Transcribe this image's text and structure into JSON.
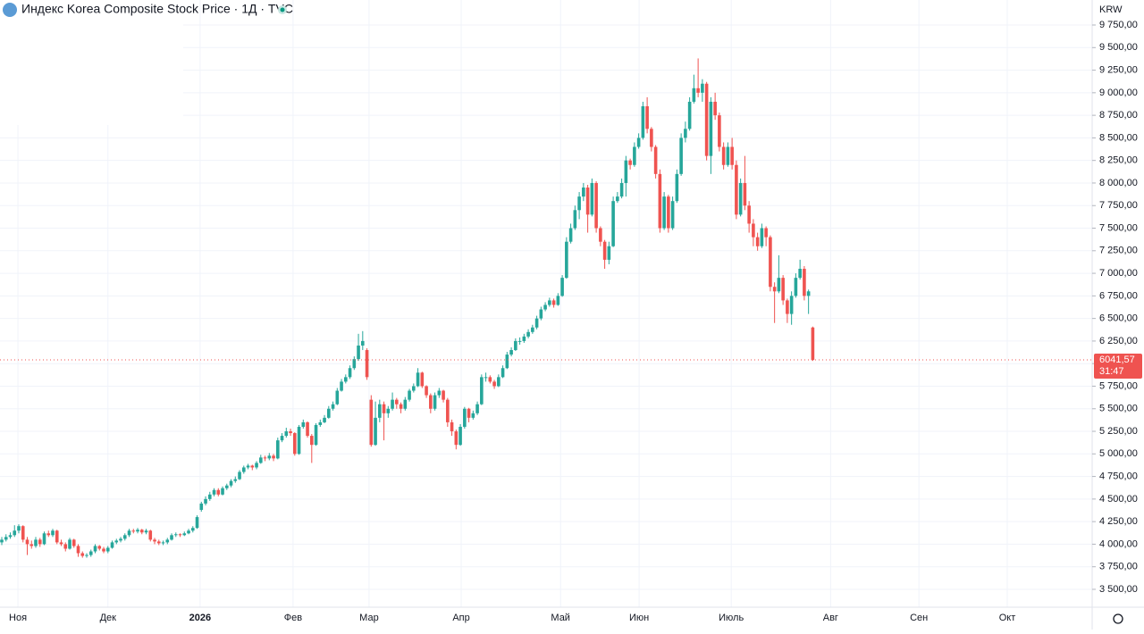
{
  "chart_data": {
    "type": "candlestick",
    "title": "Индекс Korea Composite Stock Price · 1Д · TVC",
    "currency": "KRW",
    "up_color": "#26a69a",
    "down_color": "#ef5350",
    "grid": true,
    "last_price": 6041.57,
    "last_price_label": "6041,57",
    "countdown": "31:47",
    "ylim": [
      3302,
      10027
    ],
    "yticks": [
      {
        "value": 3500,
        "label": "3 500,00"
      },
      {
        "value": 3750,
        "label": "3 750,00"
      },
      {
        "value": 4000,
        "label": "4 000,00"
      },
      {
        "value": 4250,
        "label": "4 250,00"
      },
      {
        "value": 4500,
        "label": "4 500,00"
      },
      {
        "value": 4750,
        "label": "4 750,00"
      },
      {
        "value": 5000,
        "label": "5 000,00"
      },
      {
        "value": 5250,
        "label": "5 250,00"
      },
      {
        "value": 5500,
        "label": "5 500,00"
      },
      {
        "value": 5750,
        "label": "5 750,00"
      },
      {
        "value": 6000,
        "label": "6 000,00"
      },
      {
        "value": 6250,
        "label": "6 250,00"
      },
      {
        "value": 6500,
        "label": "6 500,00"
      },
      {
        "value": 6750,
        "label": "6 750,00"
      },
      {
        "value": 7000,
        "label": "7 000,00"
      },
      {
        "value": 7250,
        "label": "7 250,00"
      },
      {
        "value": 7500,
        "label": "7 500,00"
      },
      {
        "value": 7750,
        "label": "7 750,00"
      },
      {
        "value": 8000,
        "label": "8 000,00"
      },
      {
        "value": 8250,
        "label": "8 250,00"
      },
      {
        "value": 8500,
        "label": "8 500,00"
      },
      {
        "value": 8750,
        "label": "8 750,00"
      },
      {
        "value": 9000,
        "label": "9 000,00"
      },
      {
        "value": 9250,
        "label": "9 250,00"
      },
      {
        "value": 9500,
        "label": "9 500,00"
      },
      {
        "value": 9750,
        "label": "9 750,00"
      }
    ],
    "xlim": [
      -0.42,
      256.8
    ],
    "xticks": [
      {
        "value": 3.8,
        "label": "Ноя"
      },
      {
        "value": 25,
        "label": "Дек"
      },
      {
        "value": 46.7,
        "label": "2026"
      },
      {
        "value": 68.6,
        "label": "Фев"
      },
      {
        "value": 86.5,
        "label": "Мар"
      },
      {
        "value": 108.2,
        "label": "Апр"
      },
      {
        "value": 131.6,
        "label": "Май"
      },
      {
        "value": 150.1,
        "label": "Июн"
      },
      {
        "value": 171.8,
        "label": "Июль"
      },
      {
        "value": 195.2,
        "label": "Авг"
      },
      {
        "value": 216,
        "label": "Сен"
      },
      {
        "value": 236.8,
        "label": "Окт"
      }
    ],
    "ohlc": [
      [
        4020,
        4080,
        3990,
        4050
      ],
      [
        4050,
        4110,
        4030,
        4080
      ],
      [
        4080,
        4130,
        4060,
        4100
      ],
      [
        4100,
        4210,
        4080,
        4150
      ],
      [
        4150,
        4220,
        4120,
        4200
      ],
      [
        4200,
        4210,
        4020,
        4050
      ],
      [
        4050,
        4080,
        3880,
        4000
      ],
      [
        4000,
        4040,
        3950,
        3980
      ],
      [
        3980,
        4080,
        3960,
        4050
      ],
      [
        4050,
        4070,
        3970,
        4000
      ],
      [
        4000,
        4140,
        3990,
        4120
      ],
      [
        4120,
        4150,
        4080,
        4100
      ],
      [
        4100,
        4170,
        4080,
        4150
      ],
      [
        4150,
        4160,
        4000,
        4020
      ],
      [
        4020,
        4050,
        3980,
        4000
      ],
      [
        4000,
        4020,
        3920,
        3950
      ],
      [
        3950,
        4070,
        3940,
        4050
      ],
      [
        4050,
        4060,
        3960,
        3980
      ],
      [
        3980,
        4000,
        3860,
        3900
      ],
      [
        3900,
        3920,
        3850,
        3870
      ],
      [
        3870,
        3900,
        3850,
        3880
      ],
      [
        3880,
        3940,
        3860,
        3920
      ],
      [
        3920,
        4000,
        3900,
        3980
      ],
      [
        3980,
        3990,
        3930,
        3950
      ],
      [
        3950,
        3970,
        3900,
        3920
      ],
      [
        3920,
        3980,
        3900,
        3960
      ],
      [
        3960,
        4040,
        3950,
        4020
      ],
      [
        4020,
        4060,
        4000,
        4040
      ],
      [
        4040,
        4080,
        4020,
        4060
      ],
      [
        4060,
        4120,
        4040,
        4100
      ],
      [
        4100,
        4170,
        4080,
        4150
      ],
      [
        4150,
        4170,
        4120,
        4140
      ],
      [
        4140,
        4180,
        4120,
        4160
      ],
      [
        4160,
        4170,
        4110,
        4130
      ],
      [
        4130,
        4170,
        4110,
        4150
      ],
      [
        4150,
        4160,
        4030,
        4050
      ],
      [
        4050,
        4070,
        4000,
        4030
      ],
      [
        4030,
        4050,
        3990,
        4010
      ],
      [
        4010,
        4040,
        3990,
        4020
      ],
      [
        4020,
        4070,
        4000,
        4050
      ],
      [
        4050,
        4120,
        4040,
        4100
      ],
      [
        4100,
        4130,
        4080,
        4110
      ],
      [
        4110,
        4120,
        4080,
        4100
      ],
      [
        4100,
        4140,
        4090,
        4120
      ],
      [
        4120,
        4170,
        4110,
        4150
      ],
      [
        4150,
        4200,
        4130,
        4180
      ],
      [
        4180,
        4320,
        4170,
        4300
      ],
      [
        4380,
        4470,
        4360,
        4450
      ],
      [
        4450,
        4530,
        4430,
        4500
      ],
      [
        4500,
        4580,
        4480,
        4550
      ],
      [
        4550,
        4620,
        4530,
        4600
      ],
      [
        4600,
        4620,
        4530,
        4550
      ],
      [
        4550,
        4640,
        4540,
        4620
      ],
      [
        4620,
        4670,
        4600,
        4650
      ],
      [
        4650,
        4720,
        4630,
        4700
      ],
      [
        4700,
        4750,
        4680,
        4720
      ],
      [
        4720,
        4820,
        4710,
        4800
      ],
      [
        4800,
        4870,
        4780,
        4850
      ],
      [
        4850,
        4890,
        4830,
        4870
      ],
      [
        4870,
        4880,
        4820,
        4850
      ],
      [
        4850,
        4920,
        4830,
        4900
      ],
      [
        4900,
        4990,
        4890,
        4960
      ],
      [
        4960,
        4980,
        4920,
        4950
      ],
      [
        4950,
        5010,
        4930,
        4980
      ],
      [
        4980,
        5000,
        4920,
        4950
      ],
      [
        4950,
        5180,
        4940,
        5150
      ],
      [
        5150,
        5230,
        5130,
        5200
      ],
      [
        5200,
        5290,
        5180,
        5250
      ],
      [
        5250,
        5280,
        5200,
        5230
      ],
      [
        5230,
        5240,
        4980,
        5000
      ],
      [
        5000,
        5320,
        4990,
        5300
      ],
      [
        5300,
        5380,
        5280,
        5350
      ],
      [
        5350,
        5360,
        5180,
        5200
      ],
      [
        5200,
        5220,
        4900,
        5100
      ],
      [
        5100,
        5340,
        5090,
        5320
      ],
      [
        5320,
        5380,
        5300,
        5350
      ],
      [
        5350,
        5430,
        5340,
        5400
      ],
      [
        5400,
        5530,
        5390,
        5500
      ],
      [
        5500,
        5580,
        5480,
        5550
      ],
      [
        5550,
        5730,
        5540,
        5700
      ],
      [
        5700,
        5830,
        5690,
        5800
      ],
      [
        5800,
        5880,
        5780,
        5850
      ],
      [
        5850,
        5980,
        5830,
        5950
      ],
      [
        5950,
        6080,
        5930,
        6050
      ],
      [
        6050,
        6330,
        6030,
        6200
      ],
      [
        6200,
        6360,
        6150,
        6250
      ],
      [
        6150,
        6170,
        5820,
        5850
      ],
      [
        5600,
        5650,
        5080,
        5100
      ],
      [
        5100,
        5580,
        5090,
        5400
      ],
      [
        5400,
        5600,
        5350,
        5550
      ],
      [
        5550,
        5580,
        5150,
        5450
      ],
      [
        5450,
        5530,
        5400,
        5500
      ],
      [
        5500,
        5680,
        5480,
        5600
      ],
      [
        5600,
        5620,
        5500,
        5550
      ],
      [
        5550,
        5570,
        5450,
        5500
      ],
      [
        5500,
        5630,
        5480,
        5600
      ],
      [
        5600,
        5720,
        5580,
        5700
      ],
      [
        5700,
        5780,
        5680,
        5750
      ],
      [
        5750,
        5950,
        5740,
        5900
      ],
      [
        5900,
        5910,
        5730,
        5750
      ],
      [
        5750,
        5760,
        5620,
        5650
      ],
      [
        5650,
        5670,
        5450,
        5500
      ],
      [
        5500,
        5680,
        5480,
        5650
      ],
      [
        5650,
        5730,
        5620,
        5700
      ],
      [
        5700,
        5710,
        5570,
        5600
      ],
      [
        5600,
        5620,
        5300,
        5350
      ],
      [
        5350,
        5380,
        5200,
        5250
      ],
      [
        5250,
        5270,
        5050,
        5100
      ],
      [
        5100,
        5330,
        5090,
        5300
      ],
      [
        5300,
        5520,
        5280,
        5500
      ],
      [
        5500,
        5510,
        5350,
        5400
      ],
      [
        5400,
        5480,
        5380,
        5450
      ],
      [
        5450,
        5580,
        5430,
        5550
      ],
      [
        5550,
        5880,
        5540,
        5850
      ],
      [
        5850,
        5900,
        5800,
        5850
      ],
      [
        5850,
        5870,
        5780,
        5800
      ],
      [
        5800,
        5820,
        5720,
        5750
      ],
      [
        5750,
        5880,
        5740,
        5850
      ],
      [
        5850,
        5980,
        5840,
        5950
      ],
      [
        5950,
        6130,
        5940,
        6100
      ],
      [
        6100,
        6180,
        6080,
        6150
      ],
      [
        6150,
        6280,
        6140,
        6250
      ],
      [
        6250,
        6290,
        6210,
        6250
      ],
      [
        6250,
        6330,
        6230,
        6300
      ],
      [
        6300,
        6380,
        6280,
        6350
      ],
      [
        6350,
        6430,
        6330,
        6400
      ],
      [
        6400,
        6530,
        6380,
        6500
      ],
      [
        6500,
        6630,
        6480,
        6600
      ],
      [
        6600,
        6680,
        6580,
        6650
      ],
      [
        6650,
        6730,
        6630,
        6700
      ],
      [
        6700,
        6720,
        6620,
        6650
      ],
      [
        6650,
        6780,
        6640,
        6750
      ],
      [
        6750,
        6980,
        6740,
        6950
      ],
      [
        6950,
        7400,
        6940,
        7350
      ],
      [
        7350,
        7550,
        7330,
        7500
      ],
      [
        7500,
        7750,
        7480,
        7700
      ],
      [
        7700,
        7900,
        7600,
        7850
      ],
      [
        7850,
        8000,
        7800,
        7950
      ],
      [
        7950,
        7980,
        7450,
        7650
      ],
      [
        7650,
        8050,
        7630,
        8000
      ],
      [
        8000,
        8020,
        7450,
        7500
      ],
      [
        7500,
        7520,
        7300,
        7350
      ],
      [
        7350,
        7370,
        7050,
        7150
      ],
      [
        7150,
        7350,
        7100,
        7300
      ],
      [
        7300,
        7850,
        7290,
        7800
      ],
      [
        7800,
        7900,
        7780,
        7850
      ],
      [
        7850,
        8050,
        7830,
        8000
      ],
      [
        8000,
        8300,
        7850,
        8250
      ],
      [
        8250,
        8270,
        8150,
        8200
      ],
      [
        8200,
        8450,
        8180,
        8400
      ],
      [
        8400,
        8550,
        8380,
        8500
      ],
      [
        8500,
        8900,
        8480,
        8850
      ],
      [
        8850,
        8950,
        8550,
        8600
      ],
      [
        8600,
        8620,
        8350,
        8400
      ],
      [
        8400,
        8420,
        8050,
        8100
      ],
      [
        8100,
        8150,
        7450,
        7500
      ],
      [
        7500,
        7900,
        7480,
        7850
      ],
      [
        7850,
        7870,
        7450,
        7500
      ],
      [
        7500,
        7850,
        7480,
        7800
      ],
      [
        7800,
        8150,
        7780,
        8100
      ],
      [
        8100,
        8550,
        8080,
        8500
      ],
      [
        8500,
        8680,
        8450,
        8600
      ],
      [
        8600,
        8950,
        8580,
        8900
      ],
      [
        8900,
        9200,
        8880,
        9050
      ],
      [
        9050,
        9380,
        8950,
        9000
      ],
      [
        9000,
        9150,
        8900,
        9100
      ],
      [
        9100,
        9120,
        8250,
        8300
      ],
      [
        8300,
        8950,
        8100,
        8900
      ],
      [
        8900,
        9000,
        8700,
        8750
      ],
      [
        8750,
        8780,
        8350,
        8400
      ],
      [
        8400,
        8450,
        8150,
        8200
      ],
      [
        8200,
        8450,
        8180,
        8400
      ],
      [
        8400,
        8500,
        8150,
        8200
      ],
      [
        8200,
        8250,
        7600,
        7650
      ],
      [
        7650,
        8050,
        7630,
        8000
      ],
      [
        8000,
        8300,
        7700,
        7750
      ],
      [
        7750,
        7800,
        7450,
        7550
      ],
      [
        7550,
        7600,
        7300,
        7400
      ],
      [
        7400,
        7450,
        7250,
        7300
      ],
      [
        7300,
        7550,
        7280,
        7500
      ],
      [
        7500,
        7520,
        7300,
        7400
      ],
      [
        7400,
        7420,
        6800,
        6850
      ],
      [
        6850,
        6900,
        6450,
        6800
      ],
      [
        6800,
        7200,
        6780,
        6950
      ],
      [
        6950,
        6980,
        6650,
        6700
      ],
      [
        6700,
        6720,
        6450,
        6550
      ],
      [
        6550,
        6800,
        6430,
        6750
      ],
      [
        6750,
        7000,
        6730,
        6950
      ],
      [
        6950,
        7150,
        6930,
        7050
      ],
      [
        7050,
        7080,
        6700,
        6750
      ],
      [
        6750,
        6820,
        6550,
        6800
      ],
      [
        6400,
        6410,
        6030,
        6041.57
      ]
    ]
  }
}
